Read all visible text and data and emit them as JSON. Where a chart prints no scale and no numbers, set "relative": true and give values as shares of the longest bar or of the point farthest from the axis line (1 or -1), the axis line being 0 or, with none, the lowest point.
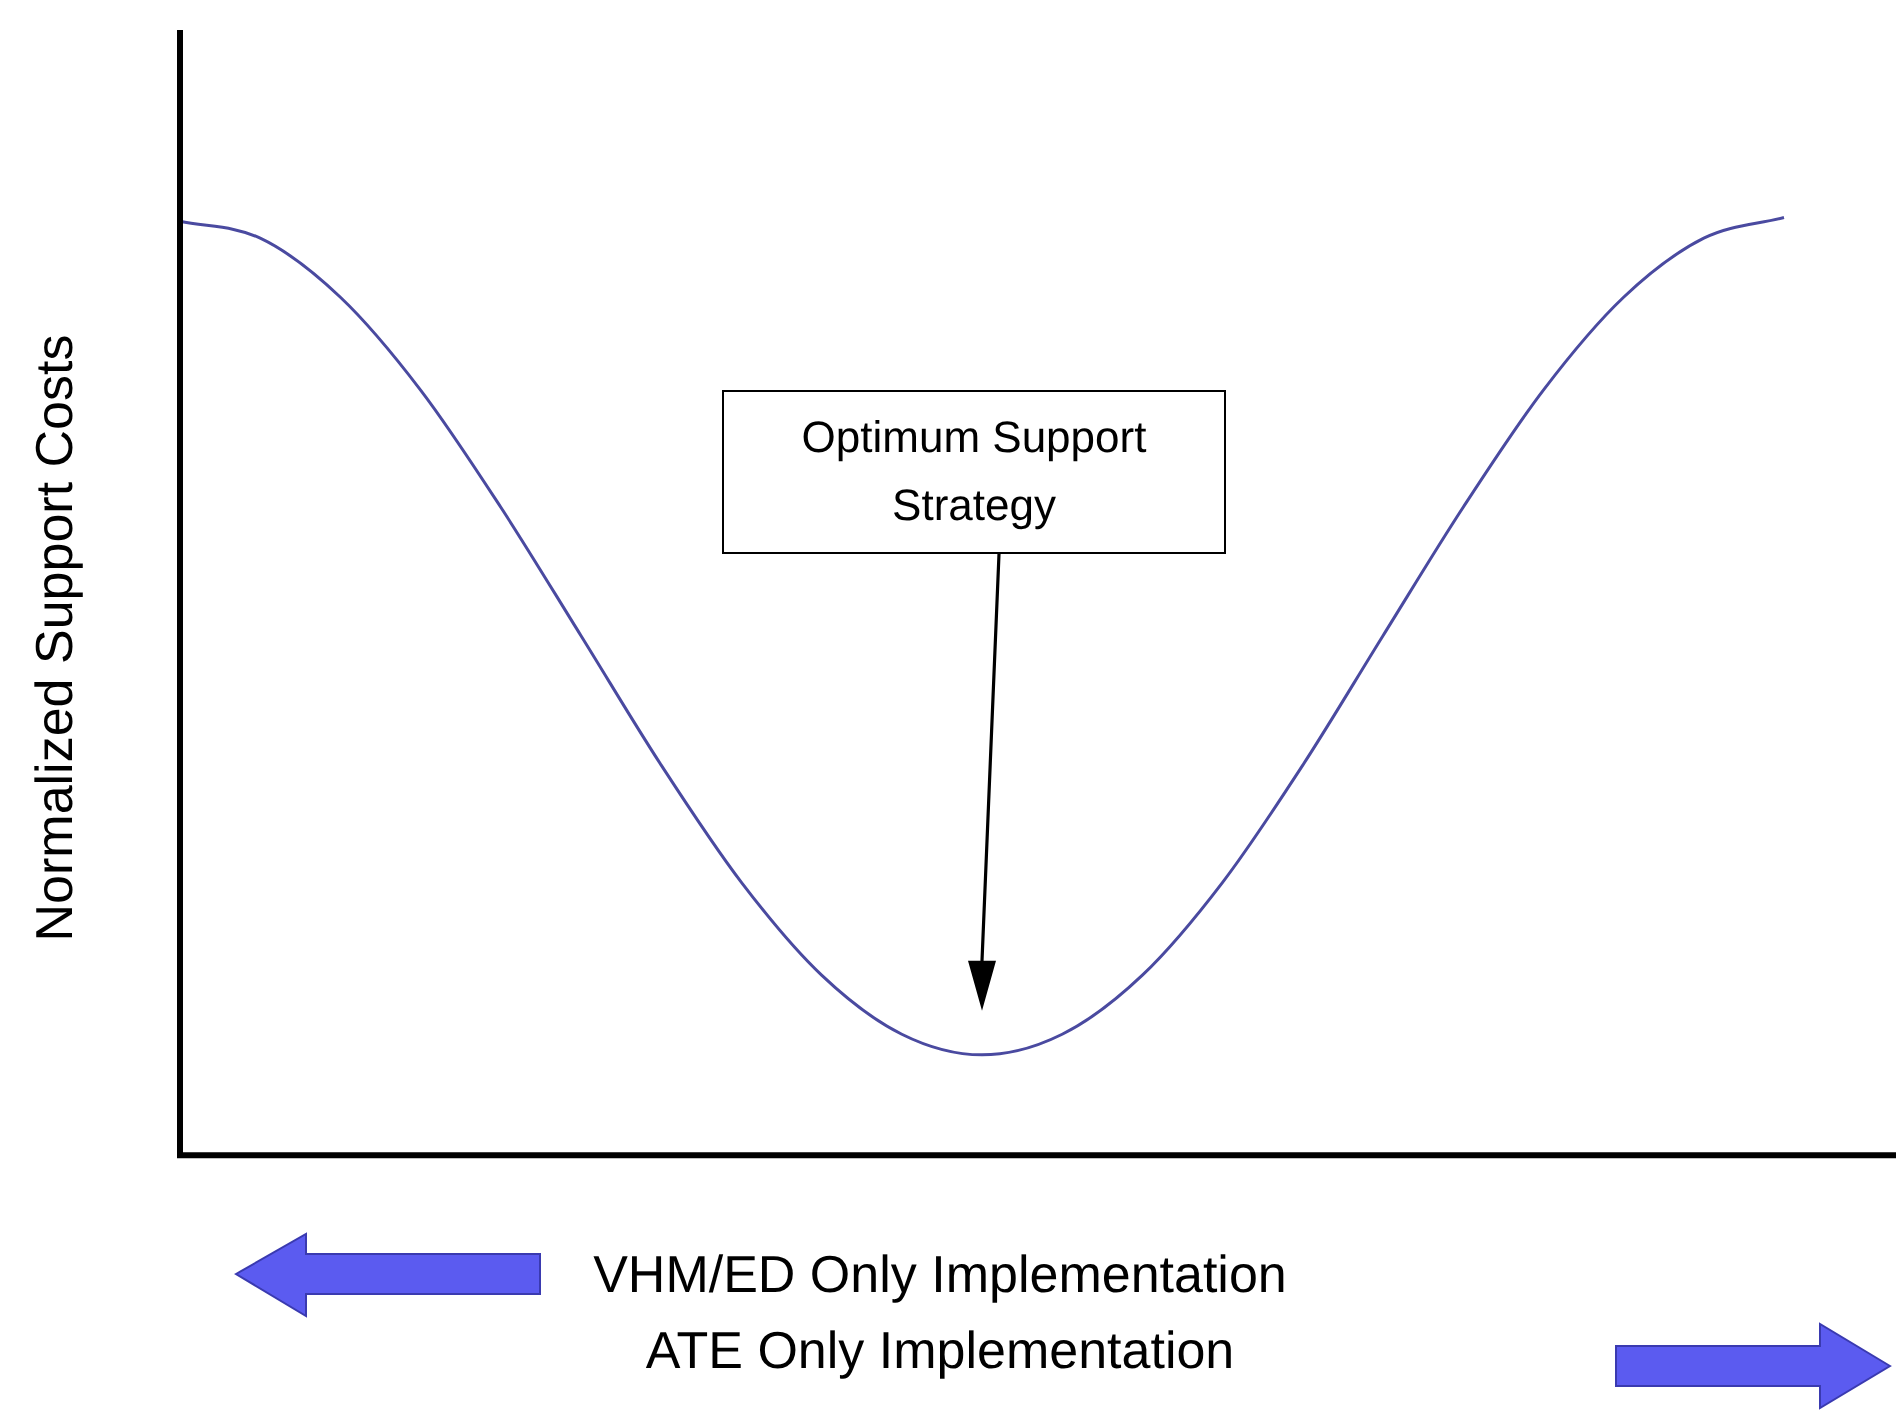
{
  "chart_data": {
    "type": "line",
    "relative": true,
    "ylabel": "Normalized Support Costs",
    "xlabel": "VHM/ED Only Implementation\nATE Only Implementation",
    "categories": [
      null,
      null,
      null,
      null,
      null,
      null,
      null,
      null,
      null,
      null,
      null,
      null,
      null,
      null,
      null,
      null,
      null,
      null,
      null,
      null,
      null
    ],
    "series": [
      {
        "color": "#4a4aa0",
        "values": [
          0.996,
          0.978,
          0.915,
          0.816,
          0.691,
          0.554,
          0.416,
          0.291,
          0.192,
          0.129,
          0.107,
          0.129,
          0.192,
          0.291,
          0.416,
          0.554,
          0.691,
          0.816,
          0.915,
          0.978,
          1.0
        ]
      }
    ],
    "annotations": [
      "Optimum Support Strategy"
    ],
    "marker": "none",
    "grid": false,
    "legend": false
  }
}
